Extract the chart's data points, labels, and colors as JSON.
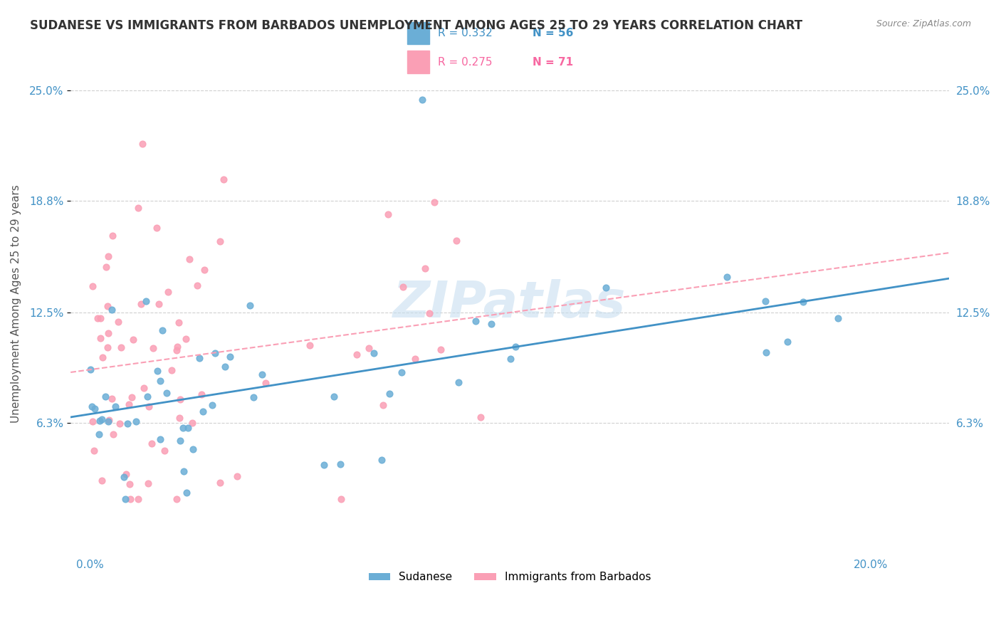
{
  "title": "SUDANESE VS IMMIGRANTS FROM BARBADOS UNEMPLOYMENT AMONG AGES 25 TO 29 YEARS CORRELATION CHART",
  "source": "Source: ZipAtlas.com",
  "ylabel": "Unemployment Among Ages 25 to 29 years",
  "x_tick_positions": [
    0.0,
    0.05,
    0.1,
    0.15,
    0.2
  ],
  "x_tick_labels": [
    "0.0%",
    "",
    "",
    "",
    "20.0%"
  ],
  "y_tick_labels": [
    "6.3%",
    "12.5%",
    "18.8%",
    "25.0%"
  ],
  "y_ticks": [
    0.063,
    0.125,
    0.188,
    0.25
  ],
  "xlim": [
    -0.005,
    0.22
  ],
  "ylim": [
    -0.01,
    0.27
  ],
  "watermark": "ZIPatlas",
  "legend1_label": "Sudanese",
  "legend2_label": "Immigrants from Barbados",
  "R1": 0.332,
  "N1": 56,
  "R2": 0.275,
  "N2": 71,
  "color_blue": "#6baed6",
  "color_pink": "#fa9fb5",
  "line_blue": "#4292c6",
  "line_pink": "#f768a1",
  "grid_color": "#d0d0d0"
}
